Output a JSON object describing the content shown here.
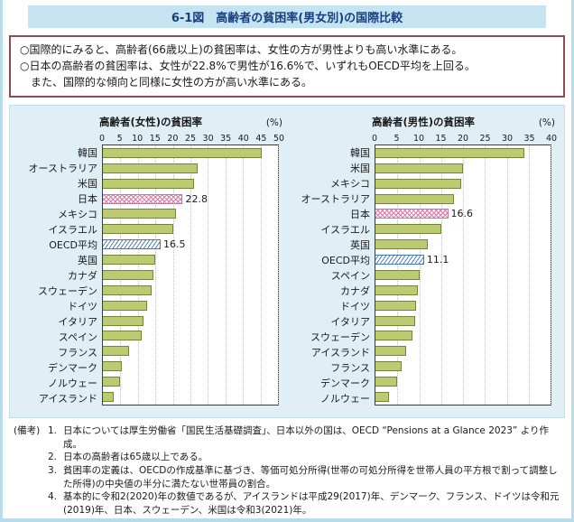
{
  "page": {
    "title": "6-1図　高齢者の貧困率(男女別)の国際比較"
  },
  "summary": {
    "lines": [
      "○国際的にみると、高齢者(66歳以上)の貧困率は、女性の方が男性よりも高い水準にある。",
      "○日本の高齢者の貧困率は、女性が22.8%で男性が16.6%で、いずれもOECD平均を上回る。",
      "　また、国際的な傾向と同様に女性の方が高い水準にある。"
    ]
  },
  "chart_data": [
    {
      "type": "bar",
      "orientation": "horizontal",
      "title": "高齢者(女性)の貧困率",
      "unit": "(%)",
      "xlim": [
        0,
        50
      ],
      "xticks": [
        0,
        5,
        10,
        15,
        20,
        25,
        30,
        35,
        40,
        45,
        50
      ],
      "grid": true,
      "legend": "none",
      "categories": [
        "韓国",
        "オーストラリア",
        "米国",
        "日本",
        "メキシコ",
        "イスラエル",
        "OECD平均",
        "英国",
        "カナダ",
        "スウェーデン",
        "ドイツ",
        "イタリア",
        "スペイン",
        "フランス",
        "デンマーク",
        "ノルウェー",
        "アイスランド"
      ],
      "values": [
        45.3,
        27.0,
        26.0,
        22.8,
        21.0,
        20.0,
        16.5,
        15.0,
        14.5,
        14.0,
        12.5,
        11.5,
        11.0,
        7.5,
        5.5,
        5.0,
        3.0
      ],
      "highlights": {
        "3": {
          "label": "22.8",
          "style": "japan"
        },
        "6": {
          "label": "16.5",
          "style": "oecd"
        }
      }
    },
    {
      "type": "bar",
      "orientation": "horizontal",
      "title": "高齢者(男性)の貧困率",
      "unit": "(%)",
      "xlim": [
        0,
        40
      ],
      "xticks": [
        0,
        5,
        10,
        15,
        20,
        25,
        30,
        35,
        40
      ],
      "grid": true,
      "legend": "none",
      "categories": [
        "韓国",
        "米国",
        "メキシコ",
        "オーストラリア",
        "日本",
        "イスラエル",
        "英国",
        "OECD平均",
        "スペイン",
        "カナダ",
        "ドイツ",
        "イタリア",
        "スウェーデン",
        "アイスランド",
        "フランス",
        "デンマーク",
        "ノルウェー"
      ],
      "values": [
        34.0,
        20.0,
        19.5,
        18.0,
        16.6,
        15.0,
        12.0,
        11.1,
        10.0,
        9.7,
        9.3,
        9.0,
        8.5,
        7.0,
        6.0,
        5.0,
        3.0
      ],
      "highlights": {
        "4": {
          "label": "16.6",
          "style": "japan"
        },
        "7": {
          "label": "11.1",
          "style": "oecd"
        }
      }
    }
  ],
  "notes": {
    "prefix": "(備考)",
    "items": [
      {
        "num": "1.",
        "text": "日本については厚生労働省「国民生活基礎調査」、日本以外の国は、OECD “Pensions at a Glance 2023” より作成。"
      },
      {
        "num": "2.",
        "text": "日本の高齢者は65歳以上である。"
      },
      {
        "num": "3.",
        "text": "貧困率の定義は、OECDの作成基準に基づき、等価可処分所得(世帯の可処分所得を世帯人員の平方根で割って調整した所得)の中央値の半分に満たない世帯員の割合。"
      },
      {
        "num": "4.",
        "text": "基本的に令和2(2020)年の数値であるが、アイスランドは平成29(2017)年、デンマーク、フランス、ドイツは令和元(2019)年、日本、スウェーデン、米国は令和3(2021)年。"
      }
    ]
  },
  "colors": {
    "title_bar_bg": "#c6e3f2",
    "title_text": "#17407e",
    "panel_bg": "#e0eff6",
    "bar": "#bccb72",
    "bar_border": "#75843b",
    "japan_hatch": "#df6ba8",
    "oecd_hatch": "#4678b4",
    "summary_border": "#8f4a56",
    "page_edge": "#b9dced"
  }
}
